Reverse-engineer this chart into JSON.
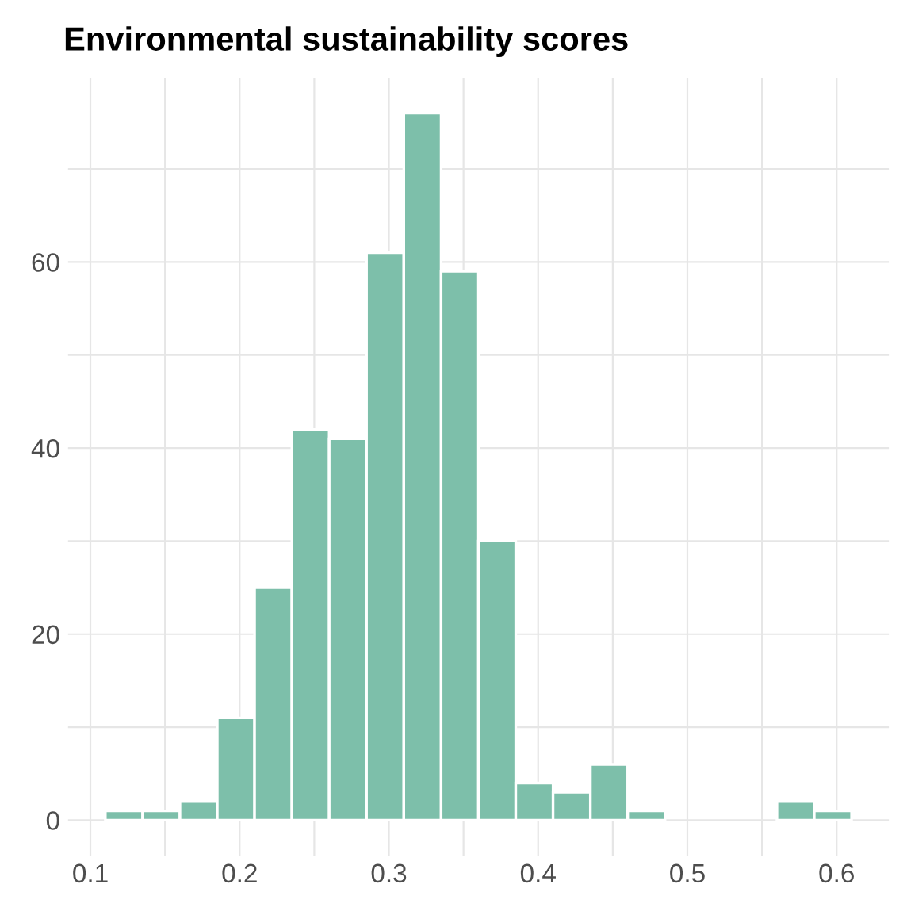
{
  "chart_data": {
    "type": "histogram",
    "title": "Environmental sustainability scores",
    "bins": [
      0.11,
      0.135,
      0.16,
      0.185,
      0.21,
      0.235,
      0.26,
      0.285,
      0.31,
      0.335,
      0.36,
      0.385,
      0.41,
      0.435,
      0.46,
      0.485,
      0.51,
      0.535,
      0.56,
      0.585,
      0.61
    ],
    "values": [
      1,
      1,
      2,
      11,
      25,
      42,
      41,
      61,
      76,
      59,
      30,
      4,
      3,
      6,
      1,
      0,
      0,
      0,
      2,
      1
    ],
    "color": "#7dbfaa",
    "xlim": [
      0.085,
      0.635
    ],
    "xticks": [
      0.1,
      {
        "value": 0.15,
        "label": null
      },
      0.2,
      {
        "value": 0.25,
        "label": null
      },
      0.3,
      {
        "value": 0.35,
        "label": null
      },
      0.4,
      {
        "value": 0.45,
        "label": null
      },
      0.5,
      {
        "value": 0.55,
        "label": null
      },
      0.6
    ],
    "ylim": [
      -3.8,
      79.8
    ],
    "yticks": [
      0,
      {
        "value": 10,
        "label": null
      },
      20,
      {
        "value": 30,
        "label": null
      },
      40,
      {
        "value": 50,
        "label": null
      },
      60,
      {
        "value": 70,
        "label": null
      }
    ],
    "grid": true
  }
}
